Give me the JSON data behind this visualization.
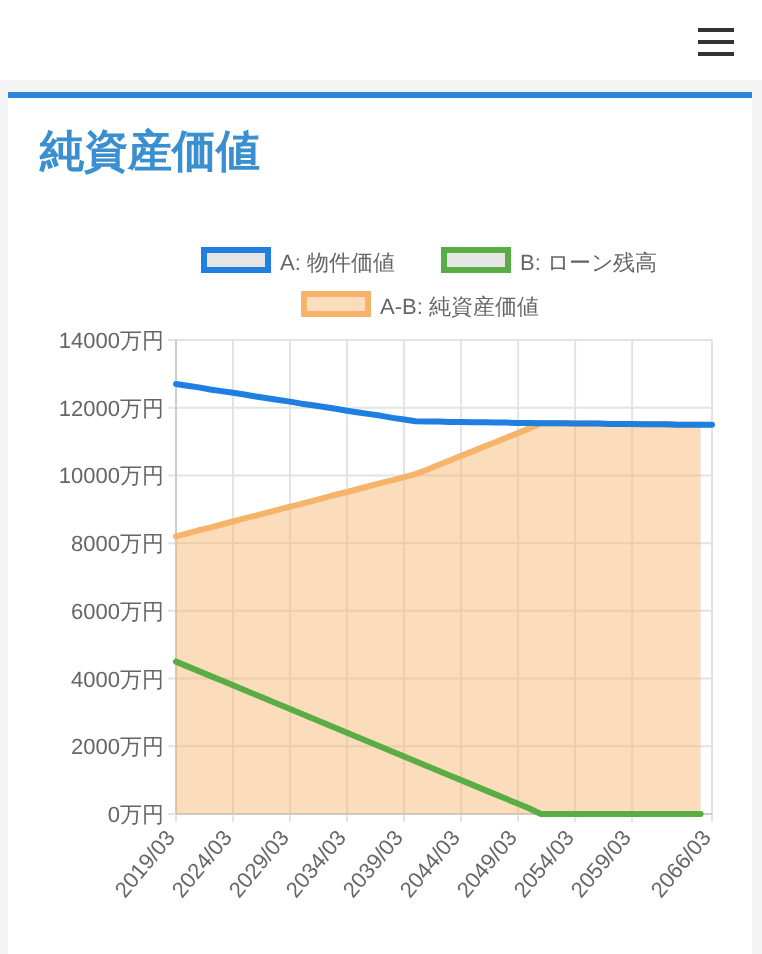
{
  "chart_data": {
    "type": "line",
    "title": "純資産価値",
    "legend": "top",
    "grid": true,
    "marker": "none",
    "categories": [
      "2019/03",
      null,
      null,
      null,
      null,
      "2024/03",
      null,
      null,
      null,
      null,
      "2029/03",
      null,
      null,
      null,
      null,
      "2034/03",
      null,
      null,
      null,
      null,
      "2039/03",
      null,
      null,
      null,
      null,
      "2044/03",
      null,
      null,
      null,
      null,
      "2049/03",
      null,
      null,
      null,
      null,
      "2054/03",
      null,
      null,
      null,
      null,
      "2059/03",
      null,
      null,
      null,
      null,
      null,
      null,
      "2066/03"
    ],
    "ylim": [
      0,
      14000
    ],
    "yticks": [
      {
        "value": 0,
        "label": "0万円"
      },
      {
        "value": 2000,
        "label": "2000万円"
      },
      {
        "value": 4000,
        "label": "4000万円"
      },
      {
        "value": 6000,
        "label": "6000万円"
      },
      {
        "value": 8000,
        "label": "8000万円"
      },
      {
        "value": 10000,
        "label": "10000万円"
      },
      {
        "value": 12000,
        "label": "12000万円"
      },
      {
        "value": 14000,
        "label": "14000万円"
      }
    ],
    "series": [
      {
        "name": "A: 物件価値",
        "type": "line",
        "color": "#1e7fe0",
        "values": [
          12700,
          12650,
          12600,
          12540,
          12490,
          12440,
          12390,
          12330,
          12280,
          12230,
          12180,
          12120,
          12070,
          12020,
          11970,
          11910,
          11860,
          11810,
          11760,
          11700,
          11650,
          11600,
          11590,
          11590,
          11580,
          11580,
          11570,
          11570,
          11560,
          11560,
          11550,
          11550,
          11540,
          11540,
          11540,
          11530,
          11530,
          11530,
          11520,
          11520,
          11520,
          11510,
          11510,
          11510,
          11500,
          11500,
          11500,
          11500
        ]
      },
      {
        "name": "B: ローン残高",
        "type": "line",
        "color": "#5aac44",
        "values": [
          4500,
          4360,
          4220,
          4080,
          3940,
          3800,
          3660,
          3520,
          3380,
          3240,
          3100,
          2960,
          2820,
          2680,
          2540,
          2400,
          2260,
          2120,
          1980,
          1840,
          1700,
          1560,
          1420,
          1280,
          1140,
          1000,
          860,
          720,
          580,
          440,
          300,
          160,
          0,
          0,
          0,
          0,
          0,
          0,
          0,
          0,
          0,
          0,
          0,
          0,
          0,
          0,
          0,
          null
        ]
      },
      {
        "name": "A-B: 純資産価値",
        "type": "area",
        "color": "#f6b46a",
        "values": [
          8200,
          8290,
          8380,
          8460,
          8550,
          8640,
          8730,
          8810,
          8900,
          8990,
          9080,
          9160,
          9250,
          9340,
          9430,
          9510,
          9600,
          9690,
          9780,
          9860,
          9950,
          10040,
          10170,
          10310,
          10440,
          10580,
          10710,
          10850,
          10980,
          11120,
          11250,
          11390,
          11540,
          11540,
          11540,
          11530,
          11530,
          11530,
          11520,
          11520,
          11520,
          11510,
          11510,
          11510,
          11500,
          11500,
          11500,
          null
        ]
      }
    ]
  }
}
